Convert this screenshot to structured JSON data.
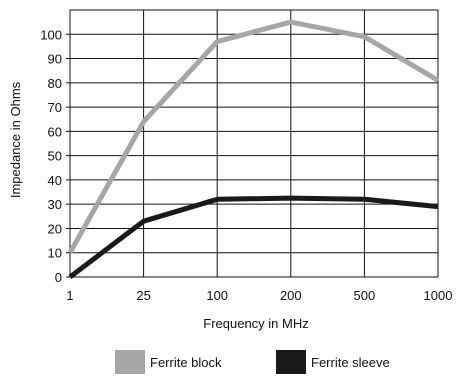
{
  "chart_data": {
    "type": "line",
    "title": "",
    "xlabel": "Frequency in MHz",
    "ylabel": "Impedance in Ohms",
    "categories": [
      "1",
      "25",
      "100",
      "200",
      "500",
      "1000"
    ],
    "ylim": [
      0,
      110
    ],
    "yticks": [
      0,
      10,
      20,
      30,
      40,
      50,
      60,
      70,
      80,
      90,
      100
    ],
    "grid": true,
    "legend_position": "bottom",
    "series": [
      {
        "name": "Ferrite block",
        "color": "#a6a6a6",
        "values": [
          10,
          64,
          97,
          105,
          99,
          81
        ]
      },
      {
        "name": "Ferrite sleeve",
        "color": "#1a1a1a",
        "values": [
          0,
          23,
          32,
          32.5,
          32,
          29
        ]
      }
    ]
  }
}
